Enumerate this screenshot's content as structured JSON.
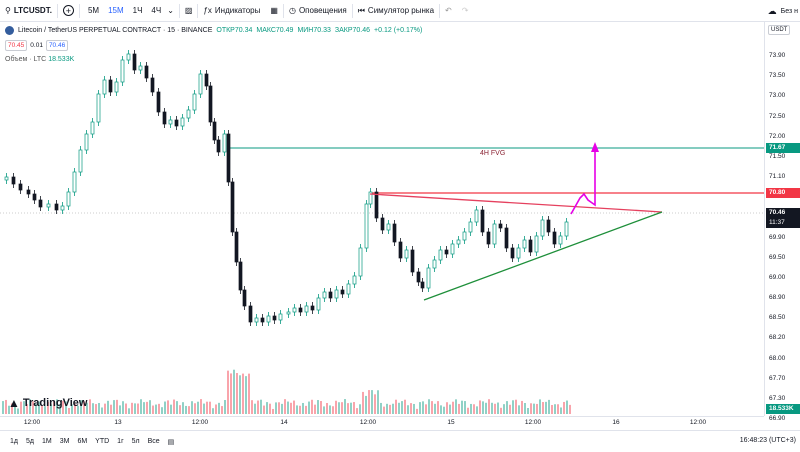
{
  "toolbar": {
    "symbol": "LTCUSDT.",
    "timeframes": [
      "5М",
      "15М",
      "1Ч",
      "4Ч"
    ],
    "active_tf": "15М",
    "indicators_label": "Индикаторы",
    "alerts_label": "Оповещения",
    "replay_label": "Симулятор рынка",
    "right_label": "Без н"
  },
  "legend": {
    "title": "Litecoin / TetherUS PERPETUAL CONTRACT · 15 · BINANCE",
    "open": "ОТКР70.34",
    "high": "МАКС70.49",
    "low": "МИН70.33",
    "close": "ЗАКР70.46",
    "change": "+0.12 (+0.17%)"
  },
  "price_row": {
    "bid": "70.45",
    "spread": "0.01",
    "ask": "70.46"
  },
  "volume_legend": {
    "label": "Объем · LTC",
    "value": "18.533K"
  },
  "price_axis": {
    "currency": "USDT",
    "labels": [
      "73.90",
      "73.50",
      "73.00",
      "72.50",
      "72.00",
      "71.50",
      "71.10",
      "70.60",
      "70.10",
      "69.90",
      "69.50",
      "69.00",
      "68.90",
      "68.50",
      "68.20",
      "68.00",
      "67.70",
      "67.30",
      "66.90"
    ],
    "tag_fvg": "71.67",
    "tag_res": "70.80",
    "tag_price": "70.46",
    "tag_timer": "11:37",
    "tag_vol": "18.533K"
  },
  "time_axis": [
    "12:00",
    "13",
    "12:00",
    "14",
    "12:00",
    "15",
    "12:00",
    "16",
    "12:00"
  ],
  "annotations": {
    "fvg": "4H FVG"
  },
  "logo_text": "TradingView",
  "bottom": {
    "ranges": [
      "1д",
      "5д",
      "1М",
      "3М",
      "6М",
      "YTD",
      "1г",
      "5л",
      "Все"
    ],
    "clock": "16:48:23 (UTC+3)"
  },
  "colors": {
    "up": "#089981",
    "down": "#131722",
    "fvg_line": "#089981",
    "res_line": "#f23645",
    "trend_upper": "#e5405e",
    "trend_lower": "#1e8f3a",
    "projection": "#e600e6",
    "price_tag": "#131722"
  }
}
